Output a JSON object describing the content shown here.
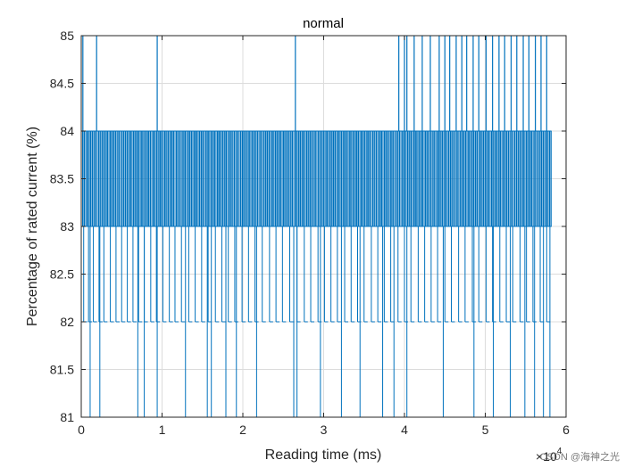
{
  "chart_data": {
    "type": "line",
    "title": "normal",
    "xlabel": "Reading time (ms)",
    "ylabel": "Percentage of rated current (%)",
    "xlim": [
      0,
      60000
    ],
    "ylim": [
      81,
      85
    ],
    "x_exponent_label": "×10",
    "x_exponent_power": "4",
    "x_tick_values": [
      0,
      10000,
      20000,
      30000,
      40000,
      50000,
      60000
    ],
    "x_tick_labels": [
      "0",
      "1",
      "2",
      "3",
      "4",
      "5",
      "6"
    ],
    "y_tick_values": [
      81,
      81.5,
      82,
      82.5,
      83,
      83.5,
      84,
      84.5,
      85
    ],
    "y_tick_labels": [
      "81",
      "81.5",
      "82",
      "82.5",
      "83",
      "83.5",
      "84",
      "84.5",
      "85"
    ],
    "grid": true,
    "series": [
      {
        "color": "#0072BD",
        "x_start": 0,
        "x_end": 58200,
        "baseline_band": [
          83,
          84
        ],
        "transitions_to_85_at": [
          200,
          1900,
          9400,
          26500,
          39300,
          40000,
          40300,
          41200,
          42200,
          43200,
          44300,
          45000,
          45600,
          46400,
          47100,
          47700,
          48500,
          49200,
          50100,
          50900,
          51700,
          52400,
          53200,
          53900,
          54700,
          55400,
          56200,
          56900,
          57600
        ],
        "dips_to_82_at": [
          300,
          900,
          1500,
          2200,
          2800,
          3600,
          4300,
          5000,
          5700,
          6400,
          7100,
          7800,
          8600,
          9300,
          10100,
          10900,
          11600,
          12400,
          13300,
          14100,
          14900,
          15700,
          16600,
          17400,
          18200,
          19000,
          19900,
          20700,
          21500,
          22400,
          23300,
          24100,
          24900,
          25800,
          26700,
          27600,
          28400,
          29300,
          30100,
          30900,
          31700,
          32600,
          33400,
          34200,
          35000,
          35900,
          36700,
          37500,
          38300,
          39200,
          40000,
          40800,
          41700,
          42500,
          43300,
          44100,
          45000,
          45800,
          46700,
          47500,
          48400,
          49200,
          50100,
          50900,
          51800,
          52600,
          53400,
          54300,
          55100,
          55900,
          56800,
          57600
        ],
        "dips_to_81_at": [
          1100,
          2300,
          7000,
          7800,
          9400,
          12900,
          15600,
          16100,
          17900,
          19200,
          21700,
          26300,
          26700,
          29600,
          32200,
          34500,
          37300,
          38700,
          40300,
          44800,
          48600,
          51000,
          53100,
          54900,
          56100,
          57200,
          58000
        ]
      }
    ]
  },
  "watermark": "CSDN @海神之光"
}
